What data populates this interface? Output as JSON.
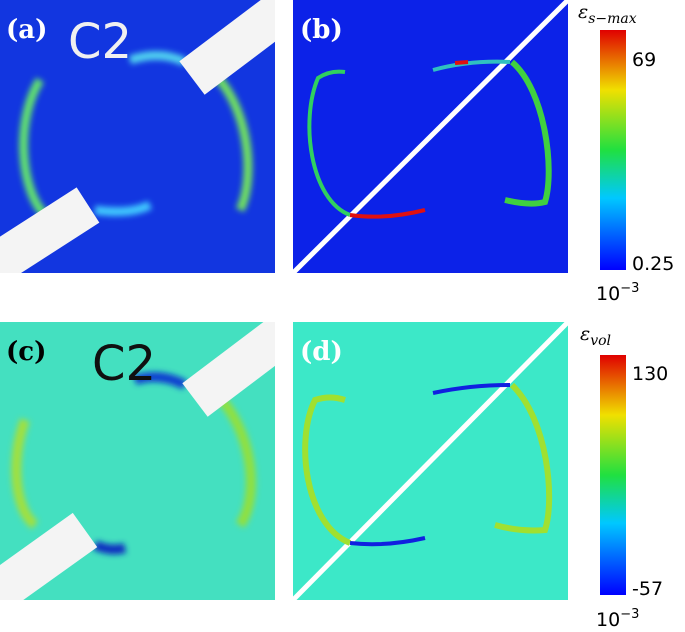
{
  "panels": [
    {
      "label": "(a)",
      "caption": "C2"
    },
    {
      "label": "(b)"
    },
    {
      "label": "(c)",
      "caption": "C2"
    },
    {
      "label": "(d)"
    }
  ],
  "colorbars": [
    {
      "symbol": "ε",
      "subscript": "s−max",
      "max": "69",
      "min": "0.25",
      "scale_base": "10",
      "scale_exponent": "−3"
    },
    {
      "symbol": "ε",
      "subscript": "vol",
      "max": "130",
      "min": "-57",
      "scale_base": "10",
      "scale_exponent": "−3"
    }
  ]
}
